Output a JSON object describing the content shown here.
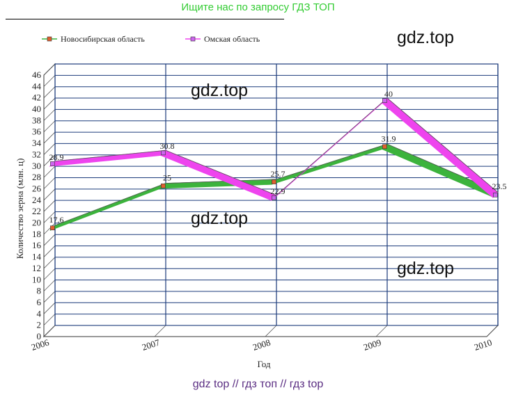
{
  "banner": {
    "top": "Ищите нас по запросу ГДЗ ТОП",
    "bottom": "gdz top  //  гдз топ  //  гдз top"
  },
  "watermarks": [
    "gdz.top",
    "gdz.top",
    "gdz.top",
    "gdz.top"
  ],
  "chart_data": {
    "type": "line",
    "title": "",
    "xlabel": "Год",
    "ylabel": "Количество зерна (млн. ц)",
    "categories": [
      "2006",
      "2007",
      "2008",
      "2009",
      "2010"
    ],
    "ylim": [
      0,
      46
    ],
    "ytick_step": 2,
    "grid": true,
    "legend_position": "top-left",
    "series": [
      {
        "name": "Новосибирская область",
        "values": [
          17.6,
          25,
          25.7,
          31.9,
          23.5
        ],
        "labels": [
          "17.6",
          "25",
          "25.7",
          "31.9",
          "23.5"
        ],
        "color": "#3cb33c",
        "marker_color": "#e06030"
      },
      {
        "name": "Омская область",
        "values": [
          28.9,
          30.8,
          22.9,
          40,
          23.4
        ],
        "labels": [
          "28.9",
          "30.8",
          "22.9",
          "40",
          ""
        ],
        "color": "#ee44ee",
        "marker_color": "#cc66ee"
      }
    ]
  }
}
